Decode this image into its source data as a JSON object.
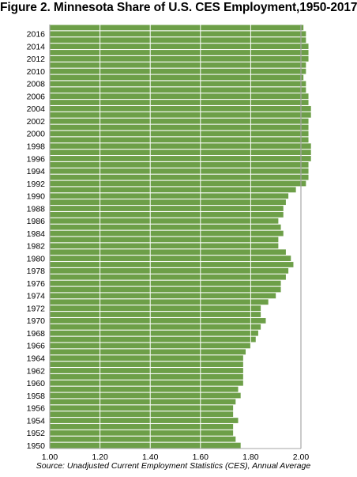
{
  "chart_data": {
    "type": "bar",
    "orientation": "horizontal",
    "title": "Figure 2. Minnesota Share of U.S. CES Employment,1950-2017",
    "source": "Source: Unadjusted Current Employment Statistics (CES), Annual Average",
    "categories": [
      "1950",
      "1951",
      "1952",
      "1953",
      "1954",
      "1955",
      "1956",
      "1957",
      "1958",
      "1959",
      "1960",
      "1961",
      "1962",
      "1963",
      "1964",
      "1965",
      "1966",
      "1967",
      "1968",
      "1969",
      "1970",
      "1971",
      "1972",
      "1973",
      "1974",
      "1975",
      "1976",
      "1977",
      "1978",
      "1979",
      "1980",
      "1981",
      "1982",
      "1983",
      "1984",
      "1985",
      "1986",
      "1987",
      "1988",
      "1989",
      "1990",
      "1991",
      "1992",
      "1993",
      "1994",
      "1995",
      "1996",
      "1997",
      "1998",
      "1999",
      "2000",
      "2001",
      "2002",
      "2003",
      "2004",
      "2005",
      "2006",
      "2007",
      "2008",
      "2009",
      "2010",
      "2011",
      "2012",
      "2013",
      "2014",
      "2015",
      "2016",
      "2017"
    ],
    "category_labels": [
      "1950",
      "",
      "1952",
      "",
      "1954",
      "",
      "1956",
      "",
      "1958",
      "",
      "1960",
      "",
      "1962",
      "",
      "1964",
      "",
      "1966",
      "",
      "1968",
      "",
      "1970",
      "",
      "1972",
      "",
      "1974",
      "",
      "1976",
      "",
      "1978",
      "",
      "1980",
      "",
      "1982",
      "",
      "1984",
      "",
      "1986",
      "",
      "1988",
      "",
      "1990",
      "",
      "1992",
      "",
      "1994",
      "",
      "1996",
      "",
      "1998",
      "",
      "2000",
      "",
      "2002",
      "",
      "2004",
      "",
      "2006",
      "",
      "2008",
      "",
      "2010",
      "",
      "2012",
      "",
      "2014",
      "",
      "2016",
      ""
    ],
    "values": [
      1.76,
      1.74,
      1.73,
      1.73,
      1.75,
      1.73,
      1.73,
      1.74,
      1.76,
      1.75,
      1.77,
      1.77,
      1.77,
      1.77,
      1.77,
      1.78,
      1.8,
      1.82,
      1.83,
      1.84,
      1.86,
      1.84,
      1.84,
      1.87,
      1.9,
      1.92,
      1.92,
      1.94,
      1.95,
      1.97,
      1.96,
      1.94,
      1.91,
      1.91,
      1.93,
      1.92,
      1.91,
      1.93,
      1.93,
      1.94,
      1.95,
      1.98,
      2.02,
      2.03,
      2.03,
      2.03,
      2.04,
      2.04,
      2.04,
      2.03,
      2.03,
      2.03,
      2.03,
      2.04,
      2.04,
      2.03,
      2.03,
      2.02,
      2.02,
      2.01,
      2.02,
      2.02,
      2.03,
      2.03,
      2.03,
      2.02,
      2.02,
      2.01
    ],
    "xlim": [
      1.0,
      2.0
    ],
    "xticks": [
      "1.00",
      "1.20",
      "1.40",
      "1.60",
      "1.80",
      "2.00"
    ],
    "bar_color": "#6d9f48",
    "grid_color": "#ffffff",
    "axis_color": "#a6a6a6",
    "grid": true
  }
}
